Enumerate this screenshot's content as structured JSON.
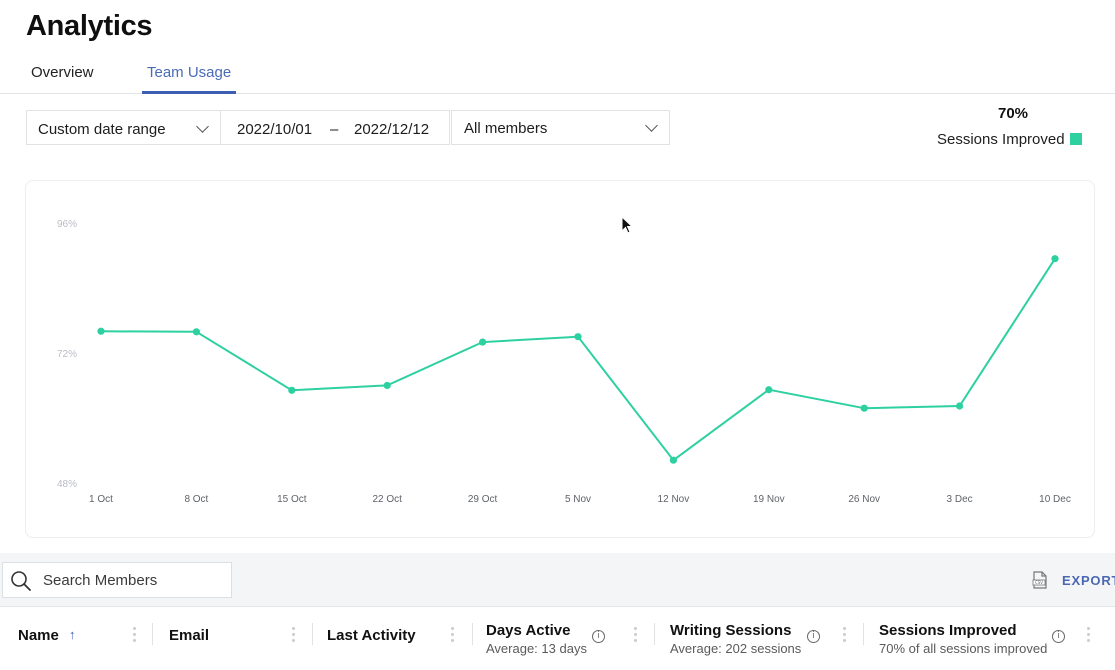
{
  "page": {
    "title": "Analytics"
  },
  "tabs": [
    {
      "label": "Overview",
      "active": false
    },
    {
      "label": "Team Usage",
      "active": true
    }
  ],
  "filters": {
    "date_range": "Custom date range",
    "start_date": "2022/10/01",
    "separator": "–",
    "end_date": "2022/12/12",
    "members": "All members"
  },
  "kpi": {
    "value": "70%",
    "label": "Sessions Improved",
    "color": "#2dd0a0"
  },
  "chart_data": {
    "type": "line",
    "title": "",
    "xlabel": "",
    "ylabel": "",
    "x": [
      "1 Oct",
      "8 Oct",
      "15 Oct",
      "22 Oct",
      "29 Oct",
      "5 Nov",
      "12 Nov",
      "19 Nov",
      "26 Nov",
      "3 Dec",
      "10 Dec"
    ],
    "y_ticks": [
      "96%",
      "72%",
      "48%"
    ],
    "ylim": [
      48,
      96
    ],
    "grid": false,
    "legend": "top-right",
    "series": [
      {
        "name": "Sessions Improved",
        "color": "#2dd0a0",
        "values": [
          76.2,
          76.1,
          65.3,
          66.2,
          74.2,
          75.2,
          52.4,
          65.4,
          62.0,
          62.4,
          89.6
        ]
      }
    ]
  },
  "search": {
    "placeholder": "Search Members",
    "value": ""
  },
  "export": {
    "label": "EXPORT",
    "icon": "csv-file-icon"
  },
  "table": {
    "columns": [
      {
        "title": "Name",
        "subtitle": "",
        "sorted": "ascending"
      },
      {
        "title": "Email",
        "subtitle": ""
      },
      {
        "title": "Last Activity",
        "subtitle": ""
      },
      {
        "title": "Days Active",
        "subtitle": "Average: 13 days",
        "info": true
      },
      {
        "title": "Writing Sessions",
        "subtitle": "Average: 202 sessions",
        "info": true
      },
      {
        "title": "Sessions Improved",
        "subtitle": "70% of all sessions improved",
        "info": true
      }
    ]
  }
}
